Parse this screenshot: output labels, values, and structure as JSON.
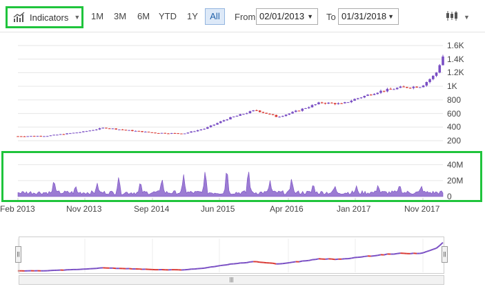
{
  "toolbar": {
    "indicators_label": "Indicators",
    "ranges": [
      {
        "label": "1M",
        "active": false
      },
      {
        "label": "3M",
        "active": false
      },
      {
        "label": "6M",
        "active": false
      },
      {
        "label": "YTD",
        "active": false
      },
      {
        "label": "1Y",
        "active": false
      },
      {
        "label": "All",
        "active": true
      }
    ],
    "from_label": "From",
    "from_value": "02/01/2013",
    "to_label": "To",
    "to_value": "01/31/2018",
    "chart_type_icon": "candlestick-icon"
  },
  "colors": {
    "up": "#7a4fc4",
    "down": "#d93a35",
    "volume_fill": "#7a4fc4",
    "highlight": "#1fc43c",
    "active_range_bg": "#dde9f8"
  },
  "chart_data": [
    {
      "type": "candlestick",
      "title": "",
      "x_range": [
        "2013-02",
        "2018-01"
      ],
      "ylim": [
        200,
        1600
      ],
      "y_ticks": [
        "200",
        "400",
        "600",
        "800",
        "1K",
        "1.2K",
        "1.4K",
        "1.6K"
      ],
      "x_ticks": [
        "Feb 2013",
        "Nov 2013",
        "Sep 2014",
        "Jun 2015",
        "Apr 2016",
        "Jan 2017",
        "Nov 2017"
      ],
      "close_trend": [
        {
          "x": "2013-02",
          "y": 265
        },
        {
          "x": "2013-06",
          "y": 270
        },
        {
          "x": "2013-11",
          "y": 330
        },
        {
          "x": "2014-02",
          "y": 390
        },
        {
          "x": "2014-05",
          "y": 355
        },
        {
          "x": "2014-09",
          "y": 315
        },
        {
          "x": "2015-01",
          "y": 305
        },
        {
          "x": "2015-04",
          "y": 380
        },
        {
          "x": "2015-07",
          "y": 520
        },
        {
          "x": "2015-11",
          "y": 650
        },
        {
          "x": "2016-02",
          "y": 550
        },
        {
          "x": "2016-04",
          "y": 610
        },
        {
          "x": "2016-08",
          "y": 760
        },
        {
          "x": "2016-11",
          "y": 740
        },
        {
          "x": "2017-01",
          "y": 820
        },
        {
          "x": "2017-04",
          "y": 920
        },
        {
          "x": "2017-07",
          "y": 980
        },
        {
          "x": "2017-10",
          "y": 1000
        },
        {
          "x": "2017-12",
          "y": 1180
        },
        {
          "x": "2018-01",
          "y": 1440
        }
      ]
    },
    {
      "type": "area",
      "title": "",
      "ylim": [
        0,
        45000000
      ],
      "y_ticks": [
        "0",
        "20M",
        "40M"
      ],
      "baseline": 5000000,
      "spikes": [
        {
          "x": "2013-07",
          "y": 20000000
        },
        {
          "x": "2013-10",
          "y": 12000000
        },
        {
          "x": "2014-01",
          "y": 15000000
        },
        {
          "x": "2014-04",
          "y": 24000000
        },
        {
          "x": "2014-07",
          "y": 18000000
        },
        {
          "x": "2014-10",
          "y": 22000000
        },
        {
          "x": "2015-01",
          "y": 26000000
        },
        {
          "x": "2015-04",
          "y": 32000000
        },
        {
          "x": "2015-07",
          "y": 36000000
        },
        {
          "x": "2015-10",
          "y": 34000000
        },
        {
          "x": "2016-01",
          "y": 18000000
        },
        {
          "x": "2016-04",
          "y": 22000000
        },
        {
          "x": "2016-07",
          "y": 15000000
        },
        {
          "x": "2016-10",
          "y": 12000000
        },
        {
          "x": "2017-01",
          "y": 11000000
        },
        {
          "x": "2017-04",
          "y": 13000000
        },
        {
          "x": "2017-07",
          "y": 14000000
        },
        {
          "x": "2017-10",
          "y": 12000000
        }
      ]
    }
  ]
}
